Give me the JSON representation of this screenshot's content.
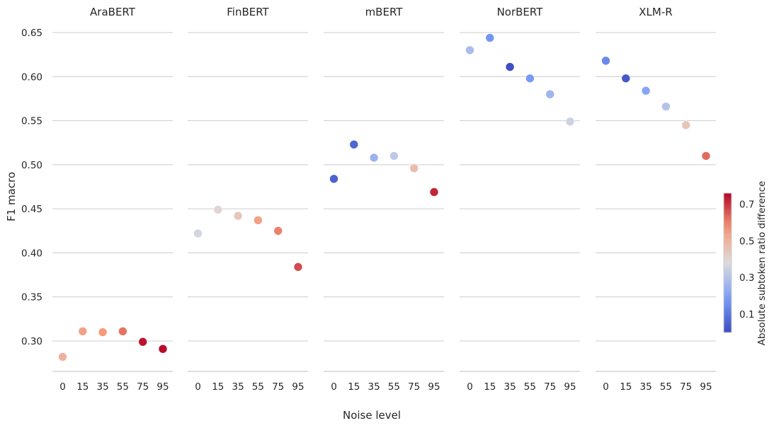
{
  "chart_data": {
    "type": "scatter",
    "layout": "faceted",
    "xlabel": "Noise level",
    "ylabel": "F1 macro",
    "x": [
      "0",
      "15",
      "35",
      "55",
      "75",
      "95"
    ],
    "yticks": [
      "0.30",
      "0.35",
      "0.40",
      "0.45",
      "0.50",
      "0.55",
      "0.60",
      "0.65"
    ],
    "ylim": [
      0.265,
      0.665
    ],
    "grid": "horizontal",
    "colorbar": {
      "label": "Absolute subtoken ratio difference",
      "ticks": [
        "0.1",
        "0.3",
        "0.5",
        "0.7"
      ],
      "range": [
        0.0,
        0.76
      ],
      "colormap": "coolwarm"
    },
    "panels": [
      {
        "title": "AraBERT",
        "values": [
          0.282,
          0.311,
          0.31,
          0.311,
          0.299,
          0.291
        ],
        "color_values": [
          0.5,
          0.55,
          0.57,
          0.62,
          0.74,
          0.75
        ]
      },
      {
        "title": "FinBERT",
        "values": [
          0.422,
          0.449,
          0.442,
          0.437,
          0.425,
          0.384
        ],
        "color_values": [
          0.36,
          0.4,
          0.44,
          0.55,
          0.6,
          0.67
        ]
      },
      {
        "title": "mBERT",
        "values": [
          0.484,
          0.523,
          0.508,
          0.51,
          0.496,
          0.469
        ],
        "color_values": [
          0.05,
          0.06,
          0.25,
          0.32,
          0.47,
          0.72
        ]
      },
      {
        "title": "NorBERT",
        "values": [
          0.63,
          0.644,
          0.611,
          0.598,
          0.58,
          0.549
        ],
        "color_values": [
          0.28,
          0.17,
          0.01,
          0.18,
          0.26,
          0.35
        ]
      },
      {
        "title": "XLM-R",
        "values": [
          0.618,
          0.598,
          0.584,
          0.566,
          0.545,
          0.51
        ],
        "color_values": [
          0.14,
          0.03,
          0.21,
          0.3,
          0.45,
          0.63
        ]
      }
    ]
  }
}
